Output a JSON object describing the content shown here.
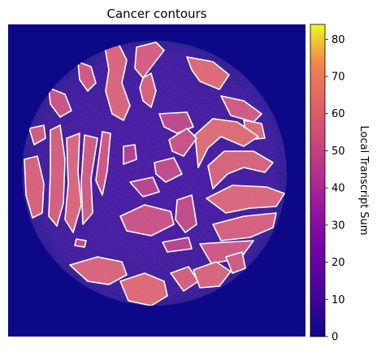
{
  "chart_data": {
    "type": "heatmap",
    "title": "Cancer contours",
    "xlabel": "",
    "ylabel": "",
    "colormap": "plasma",
    "colorbar": {
      "label": "Local Transcript Sum",
      "range": [
        0,
        84
      ],
      "ticks": [
        0,
        10,
        20,
        30,
        40,
        50,
        60,
        70,
        80
      ],
      "tick_labels": [
        "0",
        "10",
        "20",
        "30",
        "40",
        "50",
        "60",
        "70",
        "80"
      ]
    },
    "background_value": 5,
    "tissue_value": 18,
    "tumor_value": 48,
    "contour_color": "#ffffff",
    "axes_visible": false
  }
}
